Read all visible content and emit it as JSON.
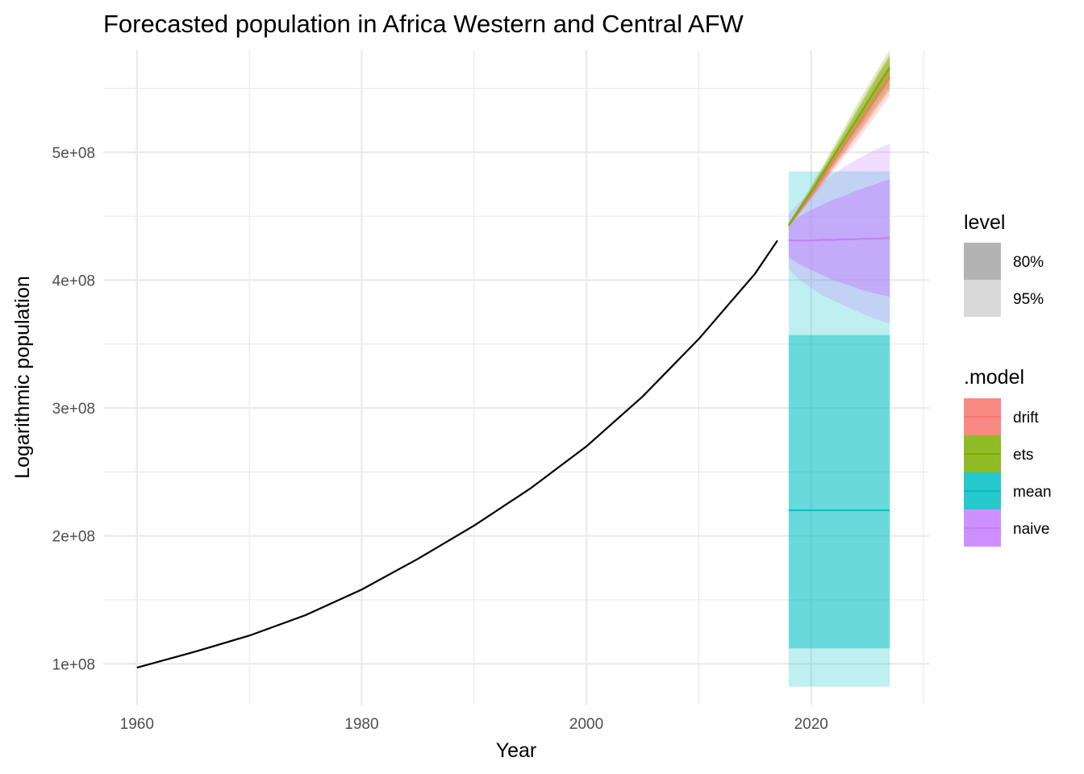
{
  "chart_data": {
    "type": "line",
    "title": "Forecasted population in Africa Western and Central AFW",
    "xlabel": "Year",
    "ylabel": "Logarithmic population",
    "xlim": [
      1957,
      2030.5
    ],
    "ylim": [
      68000000,
      580000000
    ],
    "x_ticks": [
      1960,
      1980,
      2000,
      2020
    ],
    "x_minor_ticks": [
      1970,
      1990,
      2010,
      2030
    ],
    "y_ticks": [
      100000000,
      200000000,
      300000000,
      400000000,
      500000000
    ],
    "y_tick_labels": [
      "1e+08",
      "2e+08",
      "3e+08",
      "4e+08",
      "5e+08"
    ],
    "y_minor_ticks": [
      150000000,
      250000000,
      350000000,
      450000000,
      550000000
    ],
    "grid": true,
    "history": {
      "x": [
        1960,
        1965,
        1970,
        1975,
        1980,
        1985,
        1990,
        1995,
        2000,
        2005,
        2010,
        2015,
        2017
      ],
      "y": [
        97000000,
        109000000,
        122000000,
        138000000,
        158000000,
        182000000,
        208000000,
        237000000,
        270000000,
        309000000,
        354000000,
        405000000,
        431000000
      ],
      "color": "#000000"
    },
    "forecasts": [
      {
        "model": "mean",
        "color": "#00BFC4",
        "x": [
          2018,
          2027
        ],
        "mean": [
          220000000,
          220000000
        ],
        "lo80": [
          112000000,
          112000000
        ],
        "hi80": [
          357000000,
          357000000
        ],
        "lo95": [
          82000000,
          82000000
        ],
        "hi95": [
          485000000,
          485000000
        ]
      },
      {
        "model": "naive",
        "color": "#C77CFF",
        "x": [
          2018,
          2019,
          2020,
          2021,
          2022,
          2023,
          2024,
          2025,
          2026,
          2027
        ],
        "mean": [
          431000000,
          431000000,
          431000000,
          431500000,
          431500000,
          432000000,
          432000000,
          432500000,
          432500000,
          433000000
        ],
        "lo80": [
          418000000,
          412000000,
          408000000,
          404000000,
          400000000,
          397000000,
          394000000,
          391000000,
          389000000,
          387000000
        ],
        "hi80": [
          444000000,
          450000000,
          455000000,
          459000000,
          463000000,
          466000000,
          470000000,
          473000000,
          476000000,
          479000000
        ],
        "lo95": [
          409000000,
          400000000,
          394000000,
          388000000,
          384000000,
          380000000,
          376000000,
          372000000,
          369000000,
          366000000
        ],
        "hi95": [
          452000000,
          461000000,
          469000000,
          476000000,
          483000000,
          489000000,
          494000000,
          499000000,
          503000000,
          507000000
        ]
      },
      {
        "model": "drift",
        "color": "#F8766D",
        "x": [
          2018,
          2019,
          2020,
          2021,
          2022,
          2023,
          2024,
          2025,
          2026,
          2027
        ],
        "mean": [
          443000000,
          455000000,
          467000000,
          480000000,
          493000000,
          506000000,
          519000000,
          532000000,
          546000000,
          559000000
        ],
        "lo80": [
          442000000,
          453000000,
          464000000,
          476000000,
          488000000,
          500000000,
          512000000,
          524000000,
          537000000,
          549000000
        ],
        "hi80": [
          444000000,
          457000000,
          470000000,
          484000000,
          498000000,
          512000000,
          526000000,
          540000000,
          555000000,
          569000000
        ],
        "lo95": [
          441000000,
          452000000,
          463000000,
          474000000,
          486000000,
          497000000,
          508000000,
          520000000,
          532000000,
          544000000
        ],
        "hi95": [
          445000000,
          458000000,
          471000000,
          486000000,
          500000000,
          515000000,
          530000000,
          544000000,
          560000000,
          574000000
        ]
      },
      {
        "model": "ets",
        "color": "#7CAE00",
        "x": [
          2018,
          2019,
          2020,
          2021,
          2022,
          2023,
          2024,
          2025,
          2026,
          2027
        ],
        "mean": [
          443000000,
          456000000,
          469000000,
          483000000,
          497000000,
          511000000,
          525000000,
          539000000,
          553000000,
          566000000
        ],
        "lo80": [
          442000000,
          454000000,
          466000000,
          479000000,
          492000000,
          505000000,
          518000000,
          531000000,
          544000000,
          557000000
        ],
        "hi80": [
          444000000,
          458000000,
          472000000,
          487000000,
          502000000,
          517000000,
          532000000,
          547000000,
          562000000,
          576000000
        ],
        "lo95": [
          441000000,
          453000000,
          465000000,
          477000000,
          490000000,
          502000000,
          515000000,
          527000000,
          540000000,
          552000000
        ],
        "hi95": [
          445000000,
          459000000,
          474000000,
          489000000,
          505000000,
          520000000,
          536000000,
          551000000,
          566000000,
          580000000
        ]
      }
    ],
    "legend_position": "right",
    "legend": {
      "level": {
        "title": "level",
        "items": [
          {
            "label": "80%",
            "color": "#B3B3B3"
          },
          {
            "label": "95%",
            "color": "#D9D9D9"
          }
        ]
      },
      "model": {
        "title": ".model",
        "items": [
          {
            "label": "drift",
            "color": "#F8766D"
          },
          {
            "label": "ets",
            "color": "#7CAE00"
          },
          {
            "label": "mean",
            "color": "#00BFC4"
          },
          {
            "label": "naive",
            "color": "#C77CFF"
          }
        ]
      }
    }
  }
}
